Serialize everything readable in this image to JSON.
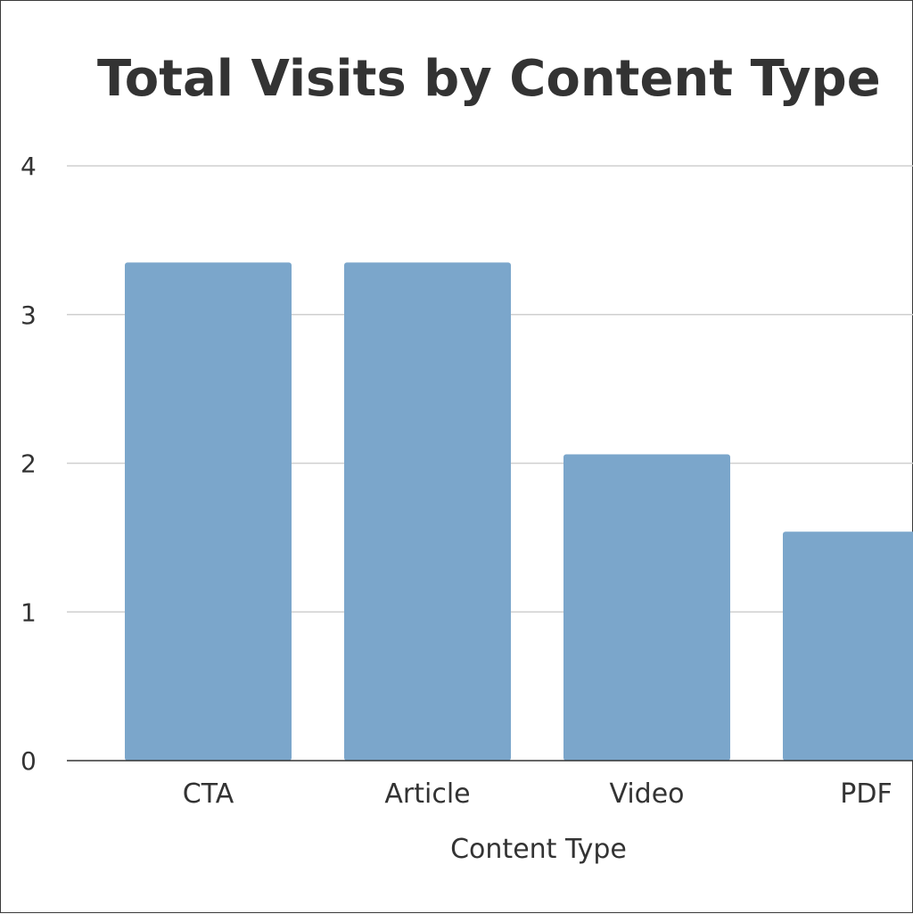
{
  "chart_data": {
    "type": "bar",
    "title": "Total Visits by Content Type",
    "xlabel": "Content Type",
    "ylabel": "",
    "categories": [
      "CTA",
      "Article",
      "Video",
      "PDF"
    ],
    "values": [
      3.35,
      3.35,
      2.06,
      1.54
    ],
    "ylim": [
      0,
      4
    ],
    "yticks": [
      "0",
      "1",
      "2",
      "3",
      "4"
    ],
    "grid": true,
    "legend": "none",
    "bar_color": "#7BA6CB",
    "text_color": "#333333"
  }
}
